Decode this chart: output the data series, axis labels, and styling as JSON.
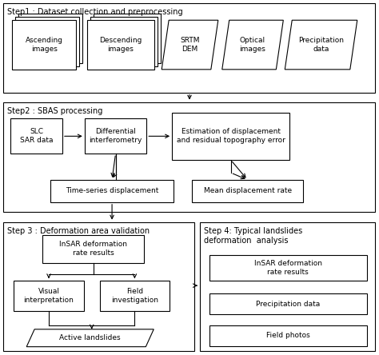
{
  "bg_color": "#ffffff",
  "step1_label": "Step1 : Dataset collection and preprocessing",
  "step2_label": "Step2 : SBAS processing",
  "step3_label": "Step 3 : Deformation area validation",
  "step4_label": "Step 4: Typical landslides\ndeformation  analysis",
  "asc_text": "Ascending\nimages",
  "desc_text": "Descending\nimages",
  "srtm_text": "SRTM\nDEM",
  "optical_text": "Optical\nimages",
  "precip_text": "Precipitation\ndata",
  "slc_text": "SLC\nSAR data",
  "diff_text": "Differential\ninterferometry",
  "estim_text": "Estimation of displacement\nand residual topography error",
  "tseries_text": "Time-series displacement",
  "mean_text": "Mean displacement rate",
  "insar3_text": "InSAR deformation\nrate results",
  "visual_text": "Visual\ninterpretation",
  "field_inv_text": "Field\ninvestigation",
  "active_text": "Active landslides",
  "insar4_text": "InSAR deformation\nrate results",
  "precip4_text": "Precipitation data",
  "field_photos_text": "Field photos"
}
